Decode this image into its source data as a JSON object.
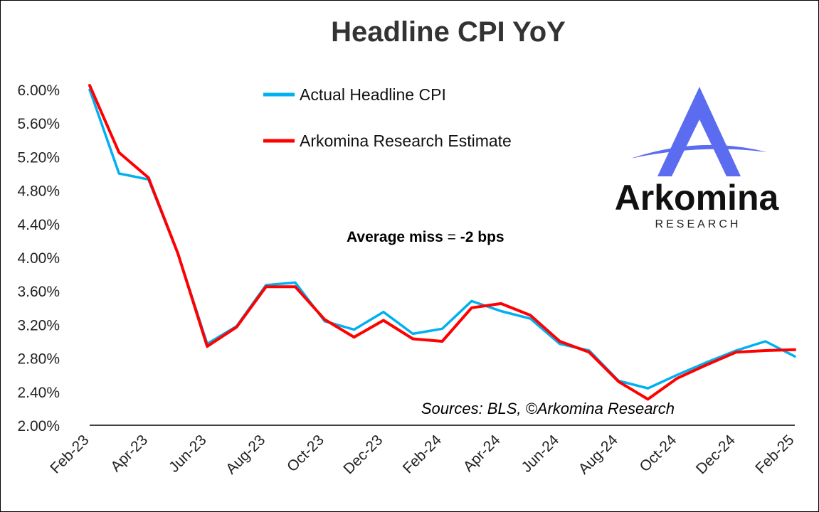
{
  "chart_data": {
    "type": "line",
    "title": "Headline CPI YoY",
    "x": [
      "Feb-23",
      "Mar-23",
      "Apr-23",
      "May-23",
      "Jun-23",
      "Jul-23",
      "Aug-23",
      "Sep-23",
      "Oct-23",
      "Nov-23",
      "Dec-23",
      "Jan-24",
      "Feb-24",
      "Mar-24",
      "Apr-24",
      "May-24",
      "Jun-24",
      "Jul-24",
      "Aug-24",
      "Sep-24",
      "Oct-24",
      "Nov-24",
      "Dec-24",
      "Jan-25",
      "Feb-25"
    ],
    "x_tick_labels": [
      "Feb-23",
      "Apr-23",
      "Jun-23",
      "Aug-23",
      "Oct-23",
      "Dec-23",
      "Feb-24",
      "Apr-24",
      "Jun-24",
      "Aug-24",
      "Oct-24",
      "Dec-24",
      "Feb-25"
    ],
    "y_tick_labels": [
      "2.00%",
      "2.40%",
      "2.80%",
      "3.20%",
      "3.60%",
      "4.00%",
      "4.40%",
      "4.80%",
      "5.20%",
      "5.60%",
      "6.00%"
    ],
    "ylim": [
      2.0,
      6.0
    ],
    "grid": false,
    "legend_position": "top-center",
    "series": [
      {
        "name": "Actual Headline CPI",
        "color": "#00B0F0",
        "values": [
          6.0,
          5.0,
          4.93,
          4.05,
          2.97,
          3.18,
          3.67,
          3.7,
          3.24,
          3.14,
          3.35,
          3.09,
          3.15,
          3.48,
          3.36,
          3.27,
          2.97,
          2.89,
          2.53,
          2.44,
          2.6,
          2.75,
          2.89,
          3.0,
          2.82
        ]
      },
      {
        "name": "Arkomina Research Estimate",
        "color": "#FF0000",
        "values": [
          6.05,
          5.25,
          4.95,
          4.05,
          2.94,
          3.17,
          3.65,
          3.65,
          3.26,
          3.05,
          3.25,
          3.03,
          3.0,
          3.4,
          3.45,
          3.31,
          3.0,
          2.87,
          2.52,
          2.31,
          2.56,
          2.72,
          2.87,
          2.89,
          2.9
        ]
      }
    ]
  },
  "annotation": {
    "miss_label": "Average miss",
    "miss_sep": " = ",
    "miss_value": "-2 bps",
    "sources": "Sources: BLS, ©Arkomina Research"
  },
  "logo": {
    "word": "Arkomina",
    "sub": "RESEARCH",
    "color": "#5B6CF0"
  }
}
